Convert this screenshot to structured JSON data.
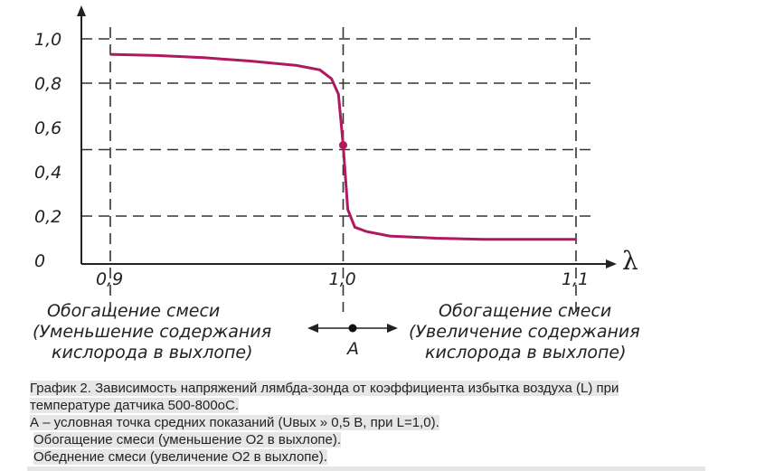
{
  "chart_data": {
    "type": "line",
    "title": "",
    "xlabel": "λ",
    "ylabel": "",
    "xlim": [
      0.9,
      1.1
    ],
    "ylim": [
      0,
      1.0
    ],
    "x_ticks": [
      "0,9",
      "1,0",
      "1,1"
    ],
    "y_ticks": [
      "0",
      "0,2",
      "0,4",
      "0,6",
      "0,8",
      "1,0"
    ],
    "grid": true,
    "series": [
      {
        "color": "#b0185f",
        "x": [
          0.9,
          0.92,
          0.94,
          0.96,
          0.98,
          0.99,
          0.995,
          0.998,
          1.0,
          1.002,
          1.005,
          1.01,
          1.02,
          1.04,
          1.06,
          1.08,
          1.1
        ],
        "y": [
          0.93,
          0.925,
          0.915,
          0.9,
          0.88,
          0.86,
          0.82,
          0.75,
          0.52,
          0.23,
          0.15,
          0.13,
          0.11,
          0.1,
          0.095,
          0.095,
          0.095
        ]
      }
    ],
    "marked_point": {
      "x": 1.0,
      "y": 0.52,
      "color": "#b0185f"
    },
    "annotations": {
      "left": [
        "Обогащение смеси",
        "(Уменьшение содержания",
        "кислорода в выхлопе)"
      ],
      "right": [
        "Обогащение смеси",
        "(Увеличение содержания",
        "кислорода в выхлопе)"
      ],
      "point_label": "A"
    }
  },
  "caption": {
    "line1": "График 2. Зависимость напряжений лямбда-зонда от коэффициента избытка воздуха (L) при",
    "line2": "температуре датчика 500-800оС.",
    "line3": "А – условная точка средних показаний (Uвых » 0,5 В, при L=1,0).",
    "line4": "Обогащение смеси (уменьшение О2 в выхлопе).",
    "line5": "Обеднение смеси (увеличение О2 в выхлопе)."
  }
}
